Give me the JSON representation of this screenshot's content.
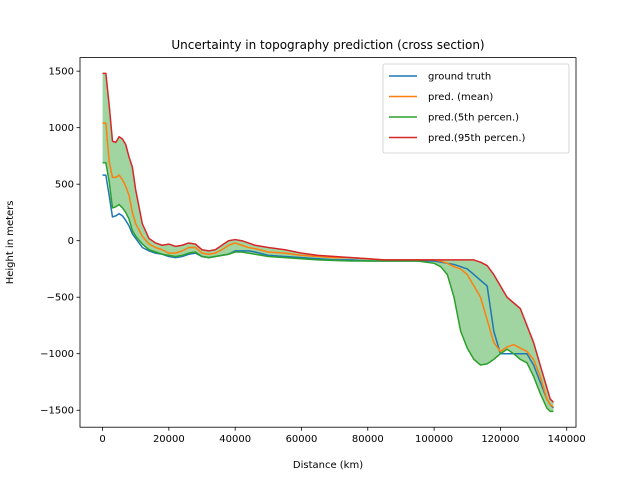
{
  "chart_data": {
    "type": "line",
    "title": "Uncertainty in topography prediction (cross section)",
    "xlabel": "Distance (km)",
    "ylabel": "Height in meters",
    "xlim": [
      -6800,
      142800
    ],
    "ylim": [
      -1650,
      1620
    ],
    "xticks": [
      0,
      20000,
      40000,
      60000,
      80000,
      100000,
      120000,
      140000
    ],
    "yticks": [
      -1500,
      -1000,
      -500,
      0,
      500,
      1000,
      1500
    ],
    "grid": false,
    "legend_position": "top-right",
    "band": {
      "between": [
        "pred.(5th percen.)",
        "pred.(95th percen.)"
      ],
      "color": "#2ca02c",
      "opacity": 0.45
    },
    "x": [
      0,
      1000,
      2000,
      3000,
      4000,
      5000,
      6000,
      7000,
      8000,
      9000,
      10000,
      12000,
      14000,
      16000,
      18000,
      20000,
      22000,
      24000,
      26000,
      28000,
      30000,
      32000,
      34000,
      36000,
      38000,
      40000,
      42000,
      44000,
      46000,
      50000,
      55000,
      60000,
      65000,
      70000,
      75000,
      80000,
      85000,
      90000,
      95000,
      100000,
      102000,
      104000,
      106000,
      108000,
      110000,
      112000,
      114000,
      116000,
      118000,
      120000,
      122000,
      124000,
      126000,
      128000,
      130000,
      132000,
      134000,
      135000,
      136000
    ],
    "series": [
      {
        "name": "ground truth",
        "color": "#1f77b4",
        "values": [
          580,
          580,
          400,
          210,
          220,
          240,
          220,
          180,
          130,
          60,
          20,
          -60,
          -90,
          -110,
          -120,
          -140,
          -150,
          -140,
          -120,
          -110,
          -140,
          -150,
          -140,
          -130,
          -120,
          -90,
          -90,
          -90,
          -100,
          -130,
          -140,
          -150,
          -160,
          -170,
          -170,
          -180,
          -180,
          -180,
          -180,
          -180,
          -190,
          -200,
          -210,
          -230,
          -250,
          -300,
          -350,
          -400,
          -800,
          -1000,
          -1000,
          -1000,
          -1000,
          -1000,
          -1100,
          -1250,
          -1400,
          -1450,
          -1480
        ]
      },
      {
        "name": "pred. (mean)",
        "color": "#ff7f0e",
        "values": [
          1040,
          1040,
          700,
          560,
          560,
          580,
          540,
          480,
          400,
          250,
          150,
          40,
          -30,
          -60,
          -80,
          -110,
          -110,
          -90,
          -60,
          -60,
          -110,
          -120,
          -110,
          -80,
          -40,
          -20,
          -40,
          -60,
          -70,
          -100,
          -110,
          -130,
          -140,
          -150,
          -150,
          -160,
          -170,
          -170,
          -170,
          -170,
          -180,
          -200,
          -230,
          -250,
          -300,
          -400,
          -500,
          -700,
          -900,
          -980,
          -940,
          -920,
          -950,
          -980,
          -1050,
          -1200,
          -1400,
          -1450,
          -1470
        ]
      },
      {
        "name": "pred.(5th percen.)",
        "color": "#2ca02c",
        "values": [
          690,
          690,
          520,
          290,
          300,
          320,
          290,
          250,
          190,
          90,
          40,
          -30,
          -80,
          -100,
          -120,
          -130,
          -140,
          -130,
          -110,
          -100,
          -140,
          -150,
          -140,
          -130,
          -120,
          -100,
          -100,
          -110,
          -120,
          -140,
          -150,
          -160,
          -170,
          -175,
          -180,
          -180,
          -180,
          -180,
          -180,
          -200,
          -230,
          -300,
          -500,
          -800,
          -950,
          -1050,
          -1100,
          -1090,
          -1050,
          -1000,
          -960,
          -1000,
          -1050,
          -1080,
          -1200,
          -1350,
          -1480,
          -1510,
          -1510
        ]
      },
      {
        "name": "pred.(95th percen.)",
        "color": "#d62728",
        "values": [
          1480,
          1480,
          1200,
          880,
          870,
          920,
          900,
          850,
          740,
          650,
          450,
          150,
          20,
          -20,
          -40,
          -30,
          -50,
          -40,
          -20,
          -30,
          -80,
          -90,
          -80,
          -40,
          0,
          10,
          0,
          -20,
          -40,
          -60,
          -80,
          -110,
          -130,
          -140,
          -150,
          -160,
          -170,
          -170,
          -170,
          -170,
          -170,
          -170,
          -170,
          -170,
          -170,
          -170,
          -190,
          -220,
          -300,
          -400,
          -500,
          -550,
          -600,
          -750,
          -900,
          -1100,
          -1300,
          -1400,
          -1430
        ]
      }
    ]
  }
}
